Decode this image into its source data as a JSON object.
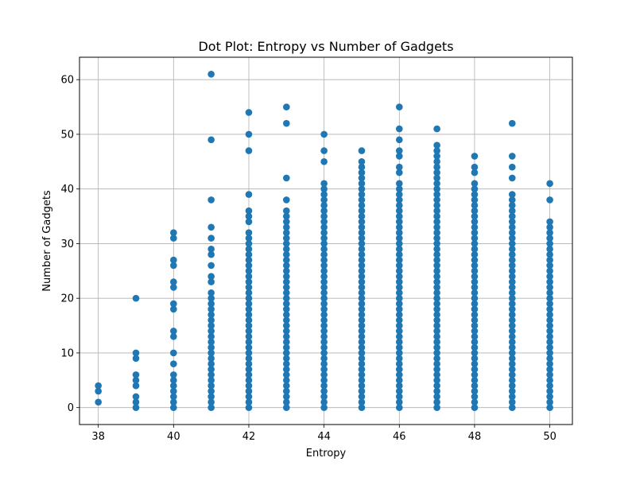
{
  "chart_data": {
    "type": "scatter",
    "title": "Dot Plot: Entropy vs Number of Gadgets",
    "xlabel": "Entropy",
    "ylabel": "Number of Gadgets",
    "xlim": [
      37.5,
      50.6
    ],
    "ylim": [
      -3.1,
      64.1
    ],
    "xticks": [
      38,
      40,
      42,
      44,
      46,
      48,
      50
    ],
    "yticks": [
      0,
      10,
      20,
      30,
      40,
      50,
      60
    ],
    "grid": true,
    "marker_color": "#1f77b4",
    "columns": [
      {
        "x": 38,
        "values": [
          1,
          3,
          4
        ]
      },
      {
        "x": 39,
        "values": [
          0,
          1,
          2,
          4,
          5,
          6,
          9,
          10,
          20
        ]
      },
      {
        "x": 40,
        "values": [
          0,
          1,
          2,
          3,
          4,
          5,
          6,
          8,
          10,
          13,
          14,
          18,
          19,
          22,
          23,
          26,
          27,
          31,
          32
        ]
      },
      {
        "x": 41,
        "ranges": [
          [
            0,
            21
          ]
        ],
        "values": [
          23,
          24,
          26,
          28,
          29,
          31,
          33,
          38,
          49,
          61
        ]
      },
      {
        "x": 42,
        "ranges": [
          [
            0,
            32
          ]
        ],
        "values": [
          34,
          35,
          36,
          39,
          47,
          50,
          54
        ]
      },
      {
        "x": 43,
        "ranges": [
          [
            0,
            36
          ]
        ],
        "values": [
          38,
          42,
          52,
          55
        ]
      },
      {
        "x": 44,
        "ranges": [
          [
            0,
            41
          ]
        ],
        "values": [
          45,
          47,
          50
        ]
      },
      {
        "x": 45,
        "ranges": [
          [
            0,
            45
          ]
        ],
        "values": [
          47
        ]
      },
      {
        "x": 46,
        "ranges": [
          [
            0,
            41
          ]
        ],
        "values": [
          43,
          44,
          46,
          47,
          49,
          51,
          55
        ]
      },
      {
        "x": 47,
        "ranges": [
          [
            0,
            48
          ]
        ],
        "values": [
          51
        ]
      },
      {
        "x": 48,
        "ranges": [
          [
            0,
            41
          ]
        ],
        "values": [
          43,
          44,
          46
        ]
      },
      {
        "x": 49,
        "ranges": [
          [
            0,
            39
          ]
        ],
        "values": [
          42,
          44,
          46,
          52
        ]
      },
      {
        "x": 50,
        "ranges": [
          [
            0,
            34
          ]
        ],
        "values": [
          38,
          41
        ]
      }
    ]
  }
}
